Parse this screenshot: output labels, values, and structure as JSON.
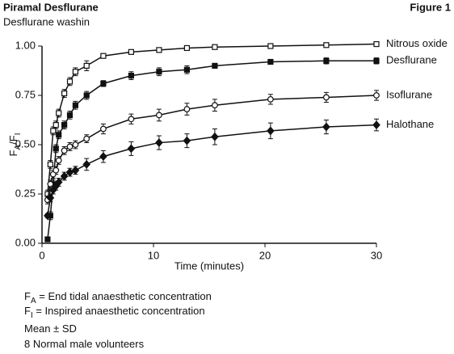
{
  "chart_data": {
    "type": "line",
    "title": "Piramal Desflurane",
    "figure_label": "Figure 1",
    "subtitle": "Desflurane washin",
    "ylabel": [
      "F",
      "A",
      "/F",
      "I"
    ],
    "xlabel": "Time (minutes)",
    "x": [
      0.5,
      0.75,
      1,
      1.25,
      1.5,
      2,
      2.5,
      3,
      4,
      5.5,
      8,
      10.5,
      13,
      15.5,
      20.5,
      25.5,
      30
    ],
    "xlim": [
      0,
      30
    ],
    "xticks": [
      0,
      10,
      20,
      30
    ],
    "ylim": [
      0,
      1
    ],
    "yticks": [
      {
        "value": 0,
        "label": "0.00"
      },
      {
        "value": 0.25,
        "label": "0.25"
      },
      {
        "value": 0.5,
        "label": "0.50"
      },
      {
        "value": 0.75,
        "label": "0.75"
      },
      {
        "value": 1,
        "label": "1.00"
      }
    ],
    "series": [
      {
        "name": "Nitrous oxide",
        "color": "#111111",
        "marker": "open-square",
        "values": [
          0.25,
          0.4,
          0.57,
          0.6,
          0.66,
          0.76,
          0.82,
          0.87,
          0.9,
          0.95,
          0.97,
          0.98,
          0.99,
          0.995,
          1.0,
          1.005,
          1.01
        ],
        "errors": [
          0.02,
          0.02,
          0.02,
          0.02,
          0.02,
          0.02,
          0.02,
          0.02,
          0.025,
          0.01,
          0.01,
          0.01,
          0.005,
          0.005,
          0.005,
          0.005,
          0.005
        ]
      },
      {
        "name": "Desflurane",
        "color": "#111111",
        "marker": "filled-square",
        "values": [
          0.02,
          0.14,
          0.3,
          0.48,
          0.55,
          0.6,
          0.65,
          0.7,
          0.75,
          0.81,
          0.85,
          0.87,
          0.88,
          0.9,
          0.92,
          0.925,
          0.925
        ],
        "errors": [
          0.005,
          0.02,
          0.02,
          0.02,
          0.02,
          0.02,
          0.02,
          0.02,
          0.02,
          0.015,
          0.02,
          0.02,
          0.02,
          0.01,
          0.01,
          0.015,
          0.015
        ]
      },
      {
        "name": "Isoflurane",
        "color": "#111111",
        "marker": "open-circle",
        "values": [
          0.22,
          0.3,
          0.35,
          0.37,
          0.42,
          0.47,
          0.49,
          0.5,
          0.53,
          0.58,
          0.63,
          0.65,
          0.68,
          0.7,
          0.73,
          0.74,
          0.75
        ],
        "errors": [
          0.02,
          0.02,
          0.02,
          0.02,
          0.02,
          0.02,
          0.02,
          0.02,
          0.02,
          0.025,
          0.025,
          0.03,
          0.03,
          0.03,
          0.025,
          0.025,
          0.025
        ]
      },
      {
        "name": "Halothane",
        "color": "#111111",
        "marker": "filled-diamond",
        "values": [
          0.14,
          0.23,
          0.27,
          0.29,
          0.31,
          0.34,
          0.36,
          0.37,
          0.4,
          0.44,
          0.48,
          0.51,
          0.52,
          0.54,
          0.57,
          0.59,
          0.6
        ],
        "errors": [
          0.01,
          0.02,
          0.02,
          0.02,
          0.02,
          0.02,
          0.02,
          0.02,
          0.03,
          0.03,
          0.035,
          0.035,
          0.035,
          0.04,
          0.04,
          0.035,
          0.03
        ]
      }
    ],
    "notes": [
      [
        "F",
        "A",
        " = End tidal anaesthetic concentration"
      ],
      [
        "F",
        "I",
        " = Inspired anaesthetic concentration"
      ],
      [
        "Mean ± SD"
      ],
      [
        "8 Normal male volunteers"
      ]
    ]
  }
}
